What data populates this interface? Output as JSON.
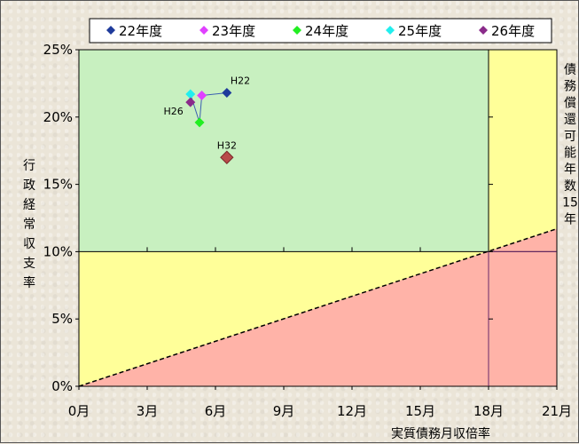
{
  "chart_data": {
    "type": "scatter",
    "xlabel": "実質債務月収倍率",
    "ylabel": "行政経常収支率",
    "right_label": [
      "債",
      "務",
      "償",
      "還",
      "可",
      "能",
      "年",
      "数",
      "15",
      "年"
    ],
    "xlim": [
      0,
      21
    ],
    "ylim": [
      0,
      25
    ],
    "x_ticks": [
      0,
      3,
      6,
      9,
      12,
      15,
      18,
      21
    ],
    "x_tick_labels": [
      "0月",
      "3月",
      "6月",
      "9月",
      "12月",
      "15月",
      "18月",
      "21月"
    ],
    "y_ticks": [
      0,
      5,
      10,
      15,
      20,
      25
    ],
    "y_tick_labels": [
      "0%",
      "5%",
      "10%",
      "15%",
      "20%",
      "25%"
    ],
    "grid": false,
    "legend_position": "top",
    "series": [
      {
        "name": "22年度",
        "color": "#1f3b9b",
        "x": 6.5,
        "y": 21.8
      },
      {
        "name": "23年度",
        "color": "#e040ff",
        "x": 5.4,
        "y": 21.6
      },
      {
        "name": "24年度",
        "color": "#22ee22",
        "x": 5.3,
        "y": 19.6
      },
      {
        "name": "25年度",
        "color": "#22eeee",
        "x": 4.9,
        "y": 21.7
      },
      {
        "name": "26年度",
        "color": "#8a2b8a",
        "x": 4.9,
        "y": 21.1
      }
    ],
    "target": {
      "label": "H32",
      "color": "#b84a4a",
      "x": 6.5,
      "y": 17.0
    },
    "point_labels": [
      {
        "text": "H22",
        "x": 6.5,
        "y": 21.8
      },
      {
        "text": "H26",
        "x": 4.9,
        "y": 21.1
      }
    ],
    "threshold_lines": {
      "x": 18,
      "y": 10,
      "diagonal_to": {
        "x": 21,
        "y": 11.7
      }
    },
    "zone_colors": {
      "good": "#c8f0c0",
      "caution": "#ffff99",
      "danger": "#ffb3a8"
    }
  }
}
